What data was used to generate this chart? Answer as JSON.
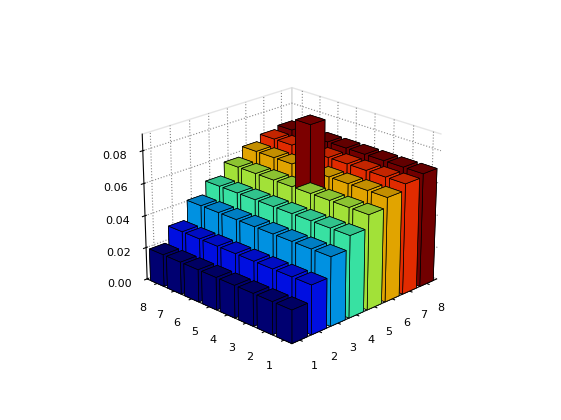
{
  "n": 8,
  "ylim": [
    0,
    0.09
  ],
  "yticks": [
    0,
    0.02,
    0.04,
    0.06,
    0.08
  ],
  "elev": 22,
  "azim": -135,
  "background_color": "#ffffff",
  "bar_width": 0.8,
  "col_heights": [
    0.02,
    0.03,
    0.042,
    0.05,
    0.058,
    0.064,
    0.068,
    0.07
  ],
  "outlier_row": 4,
  "outlier_col": 5,
  "outlier_val": 0.092,
  "grid_linestyle": ":",
  "grid_color": "#888888",
  "grid_alpha": 0.8,
  "edge_color": "black",
  "edge_linewidth": 0.5,
  "tick_fontsize": 8
}
